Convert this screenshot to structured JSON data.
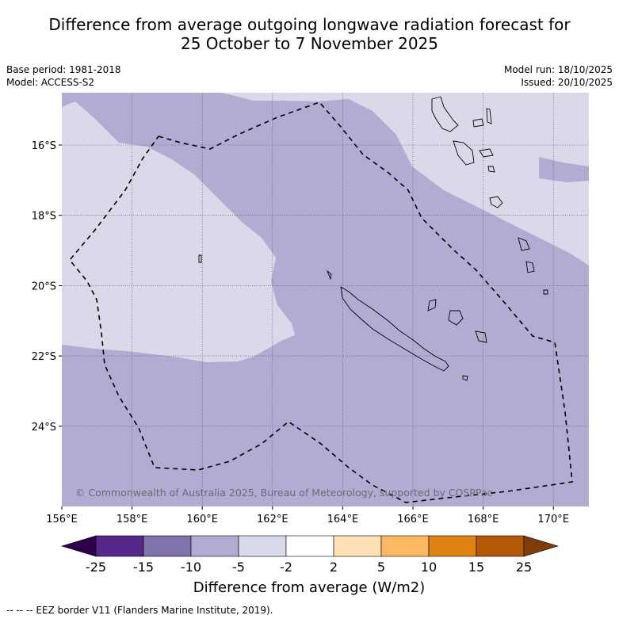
{
  "title": {
    "line1": "Difference from average outgoing longwave radiation forecast for",
    "line2": "25 October to 7 November 2025"
  },
  "meta": {
    "base_period": "Base period: 1981-2018",
    "model": "Model: ACCESS-S2",
    "model_run": "Model run: 18/10/2025",
    "issued": "Issued: 20/10/2025"
  },
  "map": {
    "lon_ticks": [
      "156°E",
      "158°E",
      "160°E",
      "162°E",
      "164°E",
      "166°E",
      "168°E",
      "170°E"
    ],
    "lat_ticks": [
      "16°S",
      "18°S",
      "20°S",
      "22°S",
      "24°S"
    ],
    "copyright": "© Commonwealth of Australia 2025, Bureau of Meteorology, supported by COSPPac",
    "colors": {
      "light_band": "#d9d9ea",
      "mid_band": "#b2acd3",
      "gridline": "#4d4d66",
      "coast": "#000000"
    }
  },
  "colorbar": {
    "ticks": [
      "-25",
      "-15",
      "-10",
      "-5",
      "-2",
      "2",
      "5",
      "10",
      "15",
      "25"
    ],
    "colors": [
      "#2d004b",
      "#542788",
      "#8073ac",
      "#b2abd2",
      "#d8daeb",
      "#ffffff",
      "#fee0b6",
      "#fdb863",
      "#e08214",
      "#b35806",
      "#7f3b08"
    ],
    "label": "Difference from average (W/m2)"
  },
  "footer": {
    "legend": "--  --  -- EEZ border V11 (Flanders Marine Institute, 2019)."
  }
}
